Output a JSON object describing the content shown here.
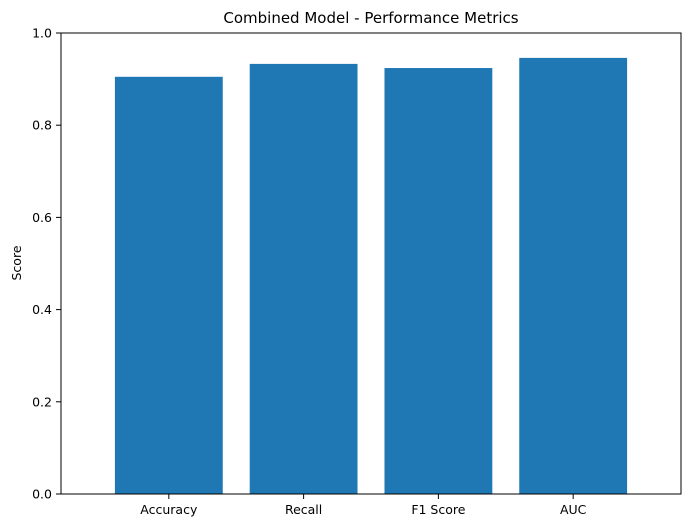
{
  "chart_data": {
    "type": "bar",
    "title": "Combined Model - Performance Metrics",
    "xlabel": "",
    "ylabel": "Score",
    "categories": [
      "Accuracy",
      "Recall",
      "F1 Score",
      "AUC"
    ],
    "values": [
      0.905,
      0.933,
      0.924,
      0.946
    ],
    "ylim": [
      0,
      1.0
    ],
    "yticks": [
      "0.0",
      "0.2",
      "0.4",
      "0.6",
      "0.8",
      "1.0"
    ],
    "grid": false,
    "bar_color": "#1f77b4"
  }
}
